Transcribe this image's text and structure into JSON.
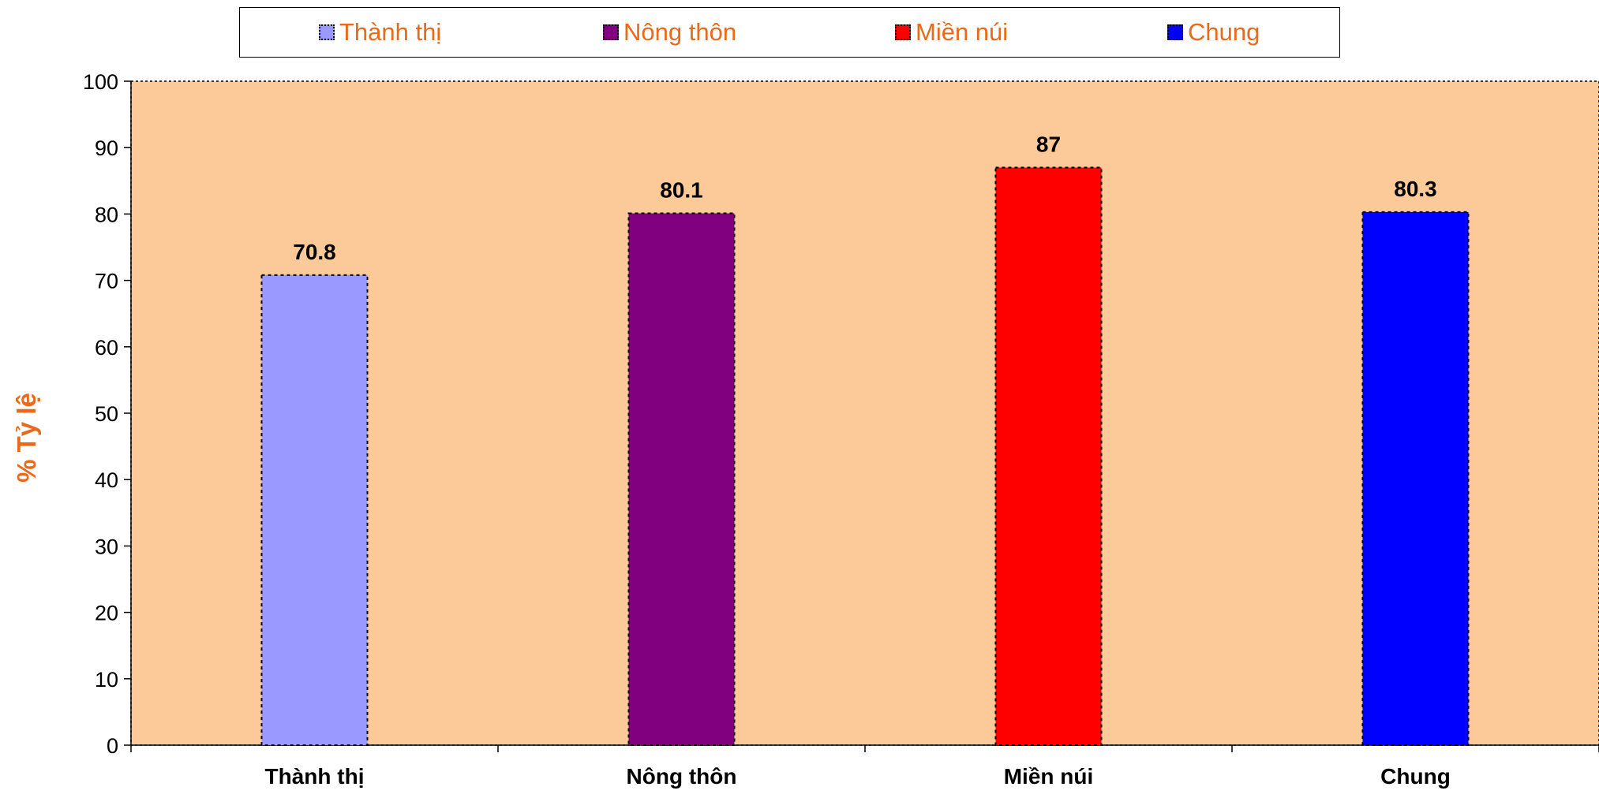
{
  "chart_data": {
    "type": "bar",
    "title": "",
    "xlabel": "",
    "ylabel": "% Tỷ lệ",
    "ylim": [
      0,
      100
    ],
    "yticks": [
      0,
      10,
      20,
      30,
      40,
      50,
      60,
      70,
      80,
      90,
      100
    ],
    "categories": [
      "Thành thị",
      "Nông thôn",
      "Miền núi",
      "Chung"
    ],
    "values": [
      70.8,
      80.1,
      87,
      80.3
    ],
    "value_labels": [
      "70.8",
      "80.1",
      "87",
      "80.3"
    ],
    "colors": [
      "#9999ff",
      "#800080",
      "#ff0000",
      "#0000ff"
    ],
    "plot_background": "#fcc998",
    "legend": {
      "placement": "top",
      "entries": [
        {
          "label": "Thành thị",
          "color": "#9999ff"
        },
        {
          "label": "Nông thôn",
          "color": "#800080"
        },
        {
          "label": "Miền núi",
          "color": "#ff0000"
        },
        {
          "label": "Chung",
          "color": "#0000ff"
        }
      ]
    },
    "grid": false
  }
}
